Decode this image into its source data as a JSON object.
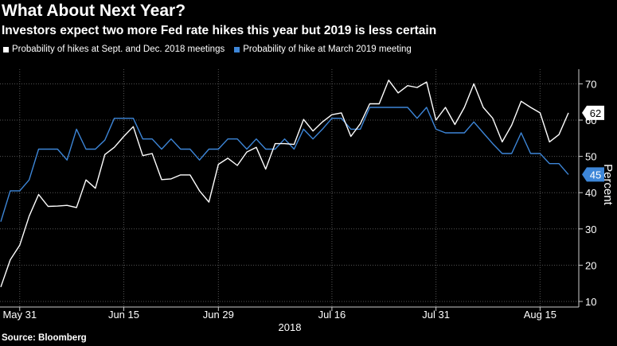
{
  "header": {
    "title": "What About Next Year?",
    "subtitle": "Investors expect two more Fed rate hikes this year but 2019 is less certain"
  },
  "footer": {
    "source": "Source: Bloomberg"
  },
  "colors": {
    "background": "#000000",
    "series_2018": "#ffffff",
    "series_2019": "#3d86d8",
    "grid": "#5a5a5a"
  },
  "chart_data": {
    "type": "line",
    "title": "What About Next Year?",
    "subtitle": "Investors expect two more Fed rate hikes this year but 2019 is less certain",
    "xlabel": "2018",
    "ylabel": "Percent",
    "ylim": [
      10,
      75
    ],
    "yticks": [
      10,
      20,
      30,
      40,
      50,
      60,
      70
    ],
    "x_tick_labels": [
      "May 31",
      "Jun 15",
      "Jun 29",
      "Jul 16",
      "Jul 31",
      "Aug 15"
    ],
    "x_tick_index": [
      2,
      13,
      23,
      35,
      46,
      57
    ],
    "grid": true,
    "legend_position": "top-left",
    "series": [
      {
        "name": "Probability of hikes at Sept. and Dec. 2018 meetings",
        "color": "#ffffff",
        "last_label": "62",
        "values": [
          14,
          21.5,
          25.5,
          33.5,
          39.5,
          36.2,
          36.3,
          36.5,
          35.9,
          43.5,
          41.2,
          50.5,
          52.5,
          55.5,
          58.2,
          50.2,
          50.8,
          43.6,
          43.8,
          44.9,
          44.9,
          40.5,
          37.4,
          47.8,
          49.5,
          47.5,
          51.2,
          52.5,
          46.5,
          53.5,
          53.5,
          53.3,
          60.2,
          57,
          59.5,
          61.5,
          62,
          55.5,
          59,
          64.5,
          64.5,
          71,
          67.5,
          69.5,
          69,
          70.5,
          60,
          63.5,
          58.8,
          63.5,
          70,
          63.5,
          60.5,
          54,
          58.6,
          65.2,
          63.5,
          62,
          54,
          56,
          62
        ]
      },
      {
        "name": "Probability of hike at March 2019 meeting",
        "color": "#3d86d8",
        "last_label": "45",
        "values": [
          32,
          40.5,
          40.5,
          43.5,
          52,
          52,
          52,
          49,
          57.5,
          52,
          52,
          54.5,
          60.5,
          60.5,
          60.5,
          54.8,
          54.8,
          52,
          54.8,
          52,
          52,
          49,
          52,
          52,
          54.8,
          54.8,
          52,
          54.8,
          52,
          52,
          54.8,
          52,
          57.5,
          54.8,
          57.5,
          60.5,
          60.5,
          57.5,
          57.5,
          63.5,
          63.5,
          63.5,
          63.5,
          63.5,
          60.5,
          63.5,
          57.5,
          56.5,
          56.5,
          56.5,
          59.5,
          56.5,
          53.5,
          50.8,
          50.8,
          56.5,
          50.8,
          50.8,
          48,
          48,
          45
        ]
      }
    ]
  }
}
